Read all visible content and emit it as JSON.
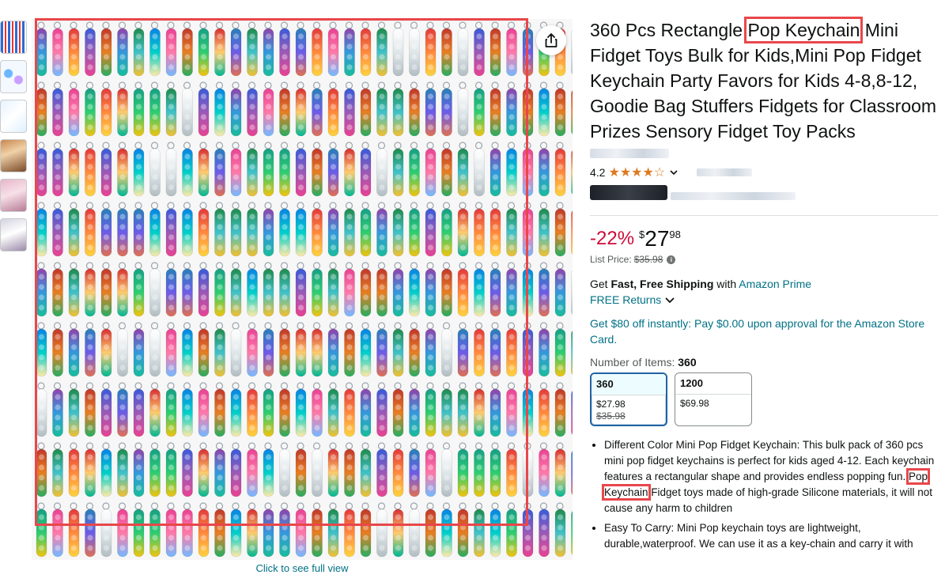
{
  "thumbnails": [
    "thumb-1",
    "thumb-2",
    "thumb-3",
    "thumb-4",
    "thumb-5",
    "thumb-6"
  ],
  "image": {
    "click_label": "Click to see full view"
  },
  "title": {
    "before": "360 Pcs Rectangle ",
    "highlight": "Pop Keychain",
    "after": " Mini Fidget Toys Bulk for Kids,Mini Pop Fidget Keychain Party Favors for Kids 4-8,8-12, Goodie Bag Stuffers Fidgets for Classroom Prizes Sensory Fidget Toy Packs"
  },
  "rating": {
    "value": "4.2",
    "stars": "★★★★☆"
  },
  "price": {
    "discount": "-22%",
    "symbol": "$",
    "whole": "27",
    "fraction": "98",
    "list_label": "List Price:",
    "list_value": "$35.98"
  },
  "shipping": {
    "prefix": "Get ",
    "bold": "Fast, Free Shipping",
    "middle": " with ",
    "link": "Amazon Prime",
    "returns": "FREE Returns"
  },
  "card_offer": "Get $80 off instantly: Pay $0.00 upon approval for the Amazon Store Card.",
  "items": {
    "label": "Number of Items: ",
    "selected": "360",
    "options": [
      {
        "name": "360",
        "price": "$27.98",
        "list": "$35.98"
      },
      {
        "name": "1200",
        "price": "$69.98",
        "list": ""
      }
    ]
  },
  "bullets": [
    {
      "before": "Different Color Mini Pop Fidget Keychain: This bulk pack of 360 pcs mini pop fidget keychains is perfect for kids aged 4-12. Each keychain features a rectangular shape and provides endless popping fun. ",
      "highlight": "Pop Keychain",
      "after": " Fidget toys made of high-grade Silicone materials, it will not cause any harm to children"
    },
    {
      "before": "Easy To Carry: Mini Pop keychain toys are lightweight, durable,waterproof. We can use it as a key-chain and carry it with",
      "highlight": "",
      "after": ""
    }
  ],
  "colors": {
    "link": "#007185",
    "discount": "#CC0C39",
    "star": "#DE7921",
    "highlight": "#E8474B",
    "selected_border": "#2162A1"
  }
}
